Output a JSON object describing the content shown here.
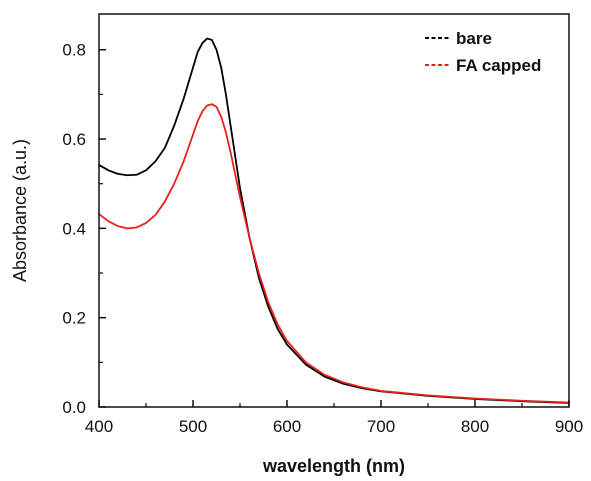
{
  "chart_data": {
    "type": "line",
    "xlabel": "wavelength (nm)",
    "ylabel": "Absorbance (a.u.)",
    "xlim": [
      400,
      900
    ],
    "ylim": [
      0.0,
      0.88
    ],
    "xticks": [
      400,
      500,
      600,
      700,
      800,
      900
    ],
    "yticks": [
      0.0,
      0.2,
      0.4,
      0.6,
      0.8
    ],
    "xtick_labels": [
      "400",
      "500",
      "600",
      "700",
      "800",
      "900"
    ],
    "ytick_labels": [
      "0.0",
      "0.2",
      "0.4",
      "0.6",
      "0.8"
    ],
    "grid": false,
    "legend_position": "top-right",
    "series": [
      {
        "name": "bare",
        "color": "#000000",
        "x": [
          400,
          410,
          420,
          430,
          440,
          450,
          460,
          470,
          480,
          490,
          500,
          505,
          510,
          515,
          520,
          525,
          530,
          535,
          540,
          545,
          550,
          560,
          570,
          580,
          590,
          600,
          620,
          640,
          660,
          680,
          700,
          750,
          800,
          850,
          900
        ],
        "y": [
          0.542,
          0.53,
          0.522,
          0.519,
          0.52,
          0.53,
          0.55,
          0.58,
          0.63,
          0.69,
          0.76,
          0.795,
          0.815,
          0.825,
          0.822,
          0.8,
          0.76,
          0.7,
          0.63,
          0.56,
          0.49,
          0.38,
          0.29,
          0.225,
          0.175,
          0.14,
          0.095,
          0.068,
          0.052,
          0.042,
          0.035,
          0.025,
          0.018,
          0.013,
          0.009
        ]
      },
      {
        "name": "FA capped",
        "color": "#e8201e",
        "x": [
          400,
          410,
          420,
          430,
          440,
          450,
          460,
          470,
          480,
          490,
          500,
          505,
          510,
          515,
          520,
          525,
          530,
          535,
          540,
          545,
          550,
          560,
          570,
          580,
          590,
          600,
          620,
          640,
          660,
          680,
          700,
          750,
          800,
          850,
          900
        ],
        "y": [
          0.432,
          0.416,
          0.405,
          0.4,
          0.402,
          0.412,
          0.43,
          0.46,
          0.5,
          0.55,
          0.61,
          0.64,
          0.662,
          0.675,
          0.678,
          0.672,
          0.65,
          0.615,
          0.57,
          0.52,
          0.47,
          0.38,
          0.3,
          0.235,
          0.185,
          0.148,
          0.1,
          0.072,
          0.055,
          0.044,
          0.036,
          0.026,
          0.019,
          0.014,
          0.01
        ]
      }
    ]
  }
}
